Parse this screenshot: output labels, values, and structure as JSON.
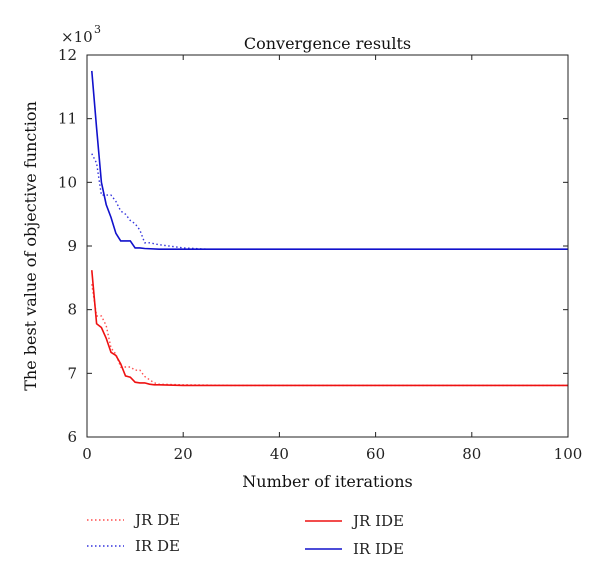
{
  "chart_data": {
    "type": "line",
    "title": "Convergence results",
    "xlabel": "Number of iterations",
    "ylabel": "The best value of objective function",
    "y_multiplier_label": "×10",
    "y_multiplier_exp": "3",
    "xlim": [
      0,
      100
    ],
    "ylim": [
      6,
      12
    ],
    "xticks": [
      0,
      20,
      40,
      60,
      80,
      100
    ],
    "yticks": [
      6,
      7,
      8,
      9,
      10,
      11,
      12
    ],
    "grid": false,
    "legend_position": "below",
    "series": [
      {
        "name": "JR DE",
        "color": "#ff4d4d",
        "style": "dotted",
        "x": [
          1,
          2,
          3,
          4,
          5,
          6,
          7,
          8,
          9,
          10,
          11,
          12,
          13,
          14,
          15,
          20,
          30,
          50,
          100
        ],
        "y": [
          8.4,
          7.9,
          7.9,
          7.75,
          7.4,
          7.3,
          7.1,
          7.1,
          7.1,
          7.05,
          7.05,
          6.95,
          6.9,
          6.85,
          6.83,
          6.82,
          6.81,
          6.81,
          6.81
        ]
      },
      {
        "name": "IR DE",
        "color": "#3333dd",
        "style": "dotted",
        "x": [
          1,
          2,
          3,
          4,
          5,
          6,
          7,
          8,
          9,
          10,
          11,
          12,
          13,
          15,
          20,
          25,
          30,
          50,
          100
        ],
        "y": [
          10.45,
          10.3,
          9.8,
          9.8,
          9.8,
          9.7,
          9.55,
          9.5,
          9.4,
          9.35,
          9.25,
          9.05,
          9.05,
          9.02,
          8.97,
          8.95,
          8.95,
          8.95,
          8.95
        ]
      },
      {
        "name": "JR IDE",
        "color": "#ee1111",
        "style": "solid",
        "x": [
          1,
          2,
          3,
          4,
          5,
          6,
          7,
          8,
          9,
          10,
          11,
          12,
          13,
          14,
          15,
          20,
          30,
          50,
          100
        ],
        "y": [
          8.62,
          7.78,
          7.72,
          7.55,
          7.33,
          7.28,
          7.15,
          6.96,
          6.94,
          6.86,
          6.85,
          6.85,
          6.83,
          6.82,
          6.82,
          6.81,
          6.81,
          6.81,
          6.81
        ]
      },
      {
        "name": "IR IDE",
        "color": "#1111cc",
        "style": "solid",
        "x": [
          1,
          2,
          3,
          4,
          5,
          6,
          7,
          8,
          9,
          10,
          11,
          12,
          15,
          20,
          30,
          50,
          100
        ],
        "y": [
          11.75,
          10.85,
          10.0,
          9.65,
          9.45,
          9.2,
          9.08,
          9.08,
          9.08,
          8.97,
          8.97,
          8.96,
          8.95,
          8.95,
          8.95,
          8.95,
          8.95
        ]
      }
    ]
  }
}
